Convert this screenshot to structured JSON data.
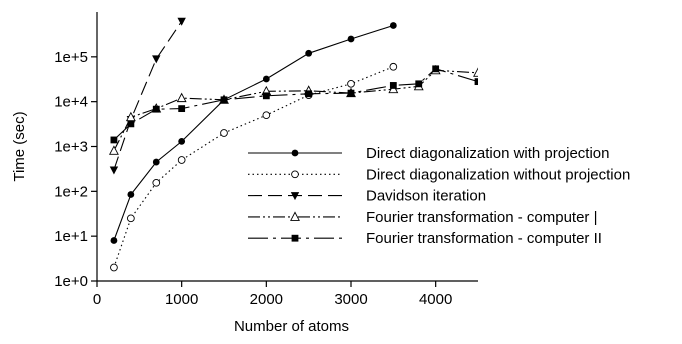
{
  "chart_data": {
    "type": "line",
    "xlabel": "Number of atoms",
    "ylabel": "Time (sec)",
    "x_scale": "linear",
    "y_scale": "log",
    "xlim": [
      0,
      4500
    ],
    "ylim": [
      1,
      1000000
    ],
    "x_ticks": [
      {
        "value": 0,
        "label": "0"
      },
      {
        "value": 1000,
        "label": "1000"
      },
      {
        "value": 2000,
        "label": "2000"
      },
      {
        "value": 3000,
        "label": "3000"
      },
      {
        "value": 4000,
        "label": "4000"
      }
    ],
    "y_ticks": [
      {
        "value": 1,
        "label": "1e+0"
      },
      {
        "value": 10,
        "label": "1e+1"
      },
      {
        "value": 100,
        "label": "1e+2"
      },
      {
        "value": 1000,
        "label": "1e+3"
      },
      {
        "value": 10000,
        "label": "1e+4"
      },
      {
        "value": 100000,
        "label": "1e+5"
      }
    ],
    "grid": false,
    "legend_position": "center-right",
    "series": [
      {
        "name": "Direct diagonalization with projection",
        "line": "solid",
        "marker": "filled-circle",
        "color": "#000000",
        "x": [
          200,
          400,
          700,
          1000,
          1500,
          2000,
          2500,
          3000,
          3500
        ],
        "y": [
          8,
          85,
          450,
          1300,
          11000,
          32000,
          120000,
          250000,
          500000
        ]
      },
      {
        "name": "Direct diagonalization without projection",
        "line": "dotted",
        "marker": "open-circle",
        "color": "#000000",
        "x": [
          200,
          400,
          700,
          1000,
          1500,
          2000,
          2500,
          3000,
          3500
        ],
        "y": [
          2,
          25,
          155,
          500,
          2000,
          5000,
          14000,
          25000,
          60000
        ]
      },
      {
        "name": "Davidson iteration",
        "line": "long-dash",
        "marker": "filled-triangle-down",
        "color": "#000000",
        "x": [
          200,
          400,
          700,
          1000
        ],
        "y": [
          300,
          4000,
          90000,
          620000
        ]
      },
      {
        "name": "Fourier transformation - computer |",
        "line": "dash-dot-dot",
        "marker": "open-triangle-up",
        "color": "#000000",
        "x": [
          200,
          400,
          700,
          1000,
          1500,
          2000,
          2500,
          3000,
          3500,
          3800,
          4000,
          4500
        ],
        "y": [
          800,
          4500,
          7000,
          12000,
          11000,
          17000,
          17500,
          15500,
          19000,
          22000,
          50000,
          44000
        ]
      },
      {
        "name": "Fourier transformation - computer II",
        "line": "long-dash-dot",
        "marker": "filled-square",
        "color": "#000000",
        "x": [
          200,
          400,
          700,
          1000,
          1500,
          2000,
          2500,
          3000,
          3500,
          3800,
          4000,
          4500
        ],
        "y": [
          1400,
          3200,
          6800,
          7000,
          11000,
          13500,
          15000,
          15500,
          23000,
          25000,
          54000,
          28000
        ]
      }
    ]
  }
}
